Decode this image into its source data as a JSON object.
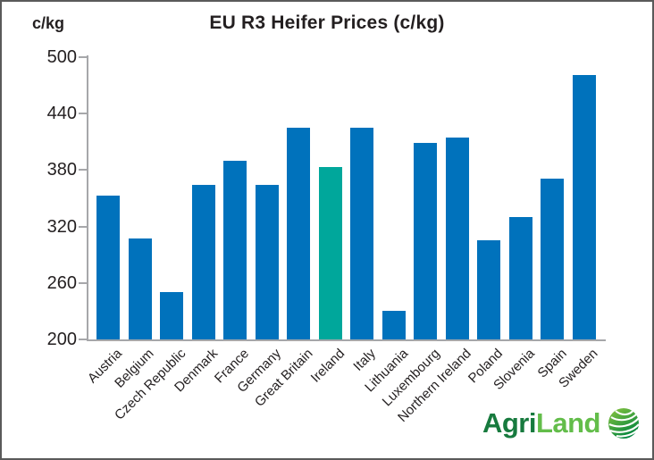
{
  "title": "EU R3 Heifer Prices (c/kg)",
  "y_axis_unit": "c/kg",
  "logo": {
    "part1": "Agri",
    "part2": "Land",
    "icon": "globe-icon"
  },
  "colors": {
    "bar": "#0072BC",
    "highlight": "#00A79B",
    "axis": "#A6A7AA",
    "text": "#231F20",
    "logo_dark_green": "#177A3E",
    "logo_light_green": "#63BD4A"
  },
  "chart_data": {
    "type": "bar",
    "title": "EU R3 Heifer Prices (c/kg)",
    "xlabel": "",
    "ylabel": "c/kg",
    "ylim": [
      200,
      500
    ],
    "yticks": [
      200,
      260,
      320,
      380,
      440,
      500
    ],
    "grid": false,
    "legend": false,
    "categories": [
      "Austria",
      "Belgium",
      "Czech Republic",
      "Denmark",
      "France",
      "Germany",
      "Great Britain",
      "Ireland",
      "Italy",
      "Lithuania",
      "Luxembourg",
      "Northern Ireland",
      "Poland",
      "Slovenia",
      "Spain",
      "Sweden"
    ],
    "values": [
      353,
      307,
      250,
      364,
      390,
      364,
      425,
      383,
      425,
      230,
      409,
      415,
      305,
      330,
      371,
      481
    ],
    "highlight_category": "Ireland",
    "bar_color": "#0072BC",
    "highlight_color": "#00A79B"
  }
}
